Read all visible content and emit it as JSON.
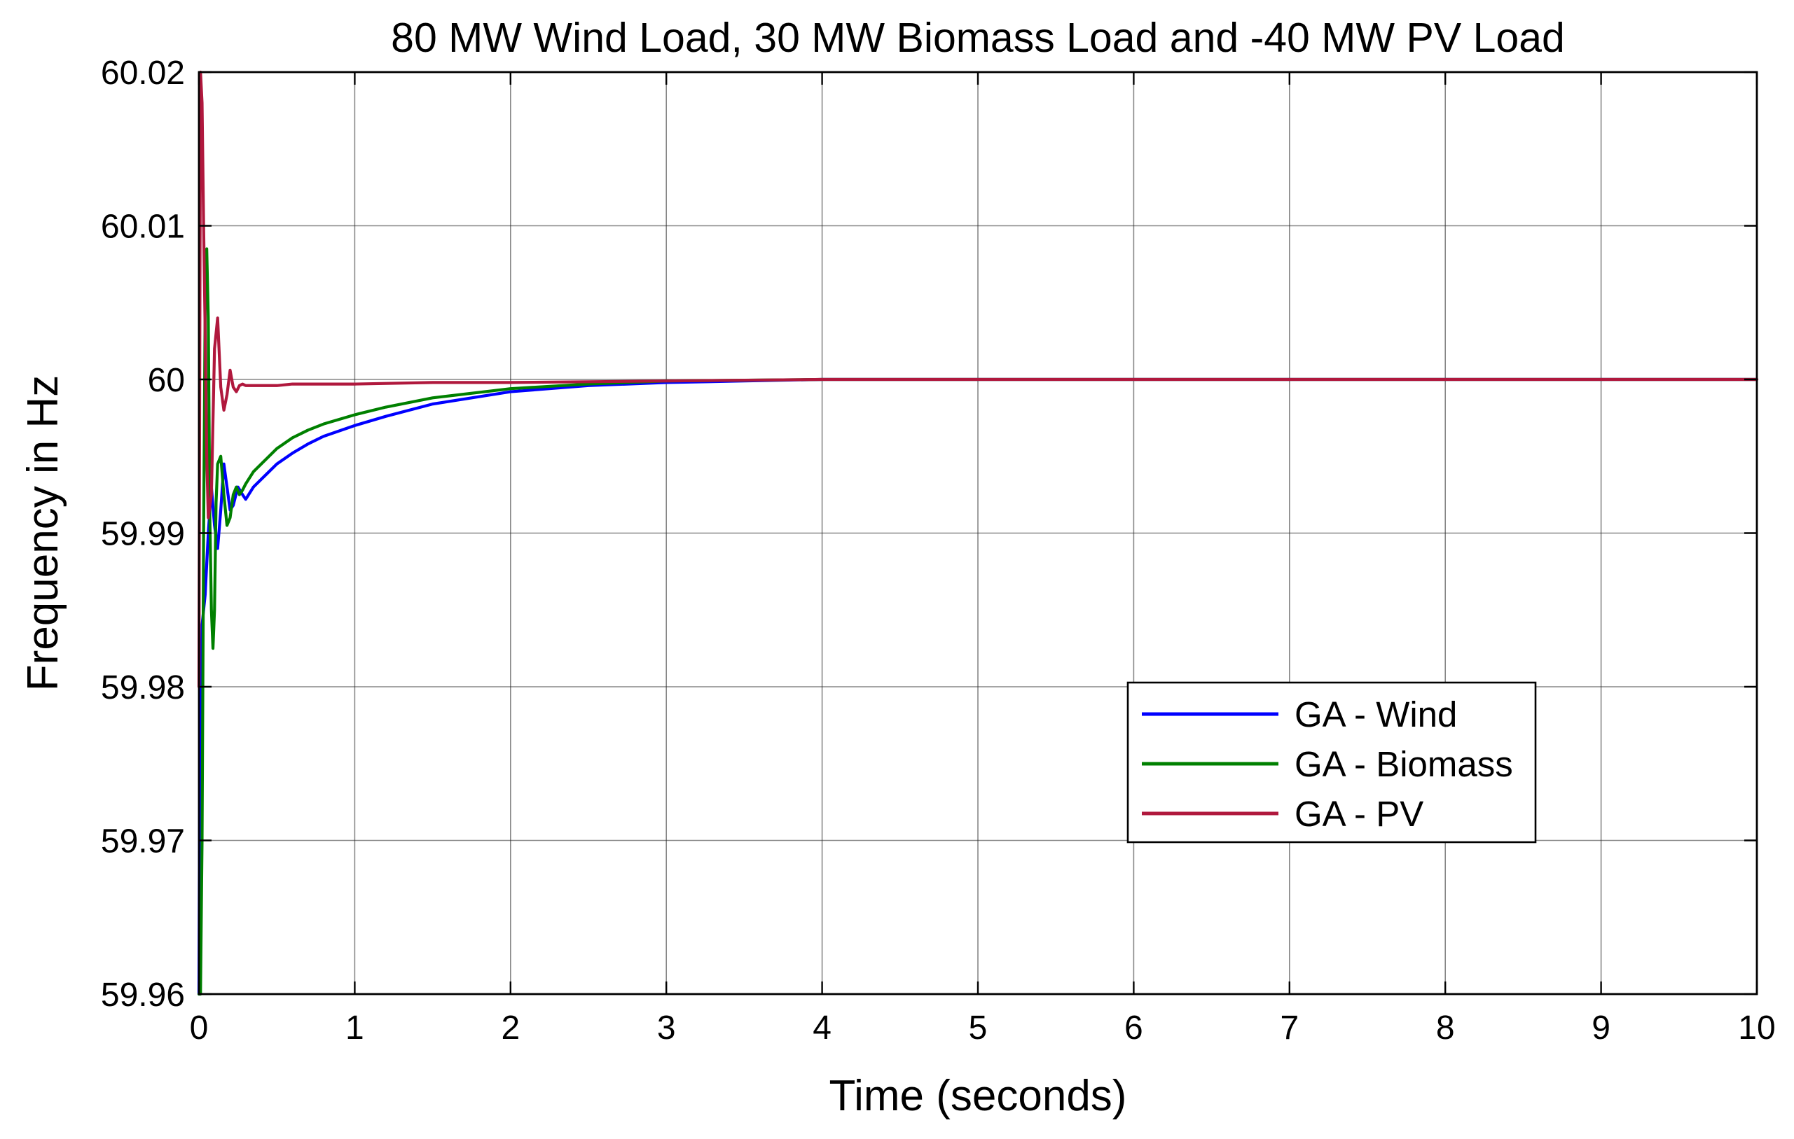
{
  "chart_data": {
    "type": "line",
    "title": "80 MW Wind Load, 30 MW Biomass Load and -40 MW PV Load",
    "xlabel": "Time (seconds)",
    "ylabel": "Frequency in Hz",
    "xlim": [
      0,
      10
    ],
    "ylim": [
      59.96,
      60.02
    ],
    "grid": true,
    "legend_position": "lower-right",
    "x_ticks": [
      0,
      1,
      2,
      3,
      4,
      5,
      6,
      7,
      8,
      9,
      10
    ],
    "x_tick_labels": [
      "0",
      "1",
      "2",
      "3",
      "4",
      "5",
      "6",
      "7",
      "8",
      "9",
      "10"
    ],
    "y_ticks": [
      59.96,
      59.97,
      59.98,
      59.99,
      60,
      60.01,
      60.02
    ],
    "y_tick_labels": [
      "59.96",
      "59.97",
      "59.98",
      "59.99",
      "60",
      "60.01",
      "60.02"
    ],
    "series": [
      {
        "name": "GA - Wind",
        "color": "#0000ff",
        "x": [
          0,
          0.005,
          0.02,
          0.04,
          0.06,
          0.08,
          0.1,
          0.12,
          0.14,
          0.16,
          0.18,
          0.2,
          0.22,
          0.25,
          0.28,
          0.3,
          0.35,
          0.4,
          0.5,
          0.6,
          0.7,
          0.8,
          1.0,
          1.2,
          1.5,
          2.0,
          2.5,
          3.0,
          3.5,
          4.0,
          5.0,
          6.0,
          7.0,
          8.0,
          9.0,
          10.0
        ],
        "y": [
          59.96,
          59.975,
          59.984,
          59.986,
          59.99,
          59.993,
          59.9905,
          59.989,
          59.9915,
          59.9945,
          59.993,
          59.9915,
          59.9918,
          59.993,
          59.9925,
          59.9922,
          59.993,
          59.9935,
          59.9945,
          59.9952,
          59.9958,
          59.9963,
          59.997,
          59.9976,
          59.9984,
          59.9992,
          59.9996,
          59.9998,
          59.9999,
          60.0,
          60.0,
          60.0,
          60.0,
          60.0,
          60.0,
          60.0
        ]
      },
      {
        "name": "GA - Biomass",
        "color": "#008000",
        "x": [
          0,
          0.01,
          0.02,
          0.03,
          0.04,
          0.05,
          0.06,
          0.07,
          0.08,
          0.09,
          0.1,
          0.11,
          0.12,
          0.14,
          0.16,
          0.18,
          0.2,
          0.22,
          0.24,
          0.26,
          0.28,
          0.3,
          0.35,
          0.4,
          0.5,
          0.6,
          0.7,
          0.8,
          1.0,
          1.2,
          1.5,
          2.0,
          2.5,
          3.0,
          3.5,
          4.0,
          5.0,
          6.0,
          7.0,
          8.0,
          9.0,
          10.0
        ],
        "y": [
          59.96,
          59.96,
          59.97,
          59.99,
          60.005,
          60.0085,
          60.004,
          59.991,
          59.985,
          59.9825,
          59.985,
          59.992,
          59.9945,
          59.995,
          59.9925,
          59.9905,
          59.991,
          59.9925,
          59.993,
          59.9925,
          59.9928,
          59.9932,
          59.994,
          59.9945,
          59.9955,
          59.9962,
          59.9967,
          59.9971,
          59.9977,
          59.9982,
          59.9988,
          59.9994,
          59.9997,
          59.9999,
          59.99995,
          60.0,
          60.0,
          60.0,
          60.0,
          60.0,
          60.0,
          60.0
        ]
      },
      {
        "name": "GA - PV",
        "color": "#b0183d",
        "x": [
          0,
          0.01,
          0.02,
          0.03,
          0.04,
          0.05,
          0.06,
          0.08,
          0.1,
          0.12,
          0.14,
          0.16,
          0.18,
          0.2,
          0.22,
          0.24,
          0.26,
          0.28,
          0.3,
          0.35,
          0.4,
          0.5,
          0.6,
          0.8,
          1.0,
          1.5,
          2.0,
          3.0,
          4.0,
          5.0,
          6.0,
          7.0,
          8.0,
          9.0,
          10.0
        ],
        "y": [
          59.98,
          60.02,
          60.018,
          60.01,
          60.003,
          59.995,
          59.991,
          59.9925,
          60.002,
          60.004,
          59.9995,
          59.998,
          59.999,
          60.0006,
          59.9995,
          59.9992,
          59.9996,
          59.9997,
          59.9996,
          59.9996,
          59.9996,
          59.9996,
          59.9997,
          59.9997,
          59.9997,
          59.9998,
          59.9998,
          59.9999,
          60.0,
          60.0,
          60.0,
          60.0,
          60.0,
          60.0,
          60.0
        ]
      }
    ]
  }
}
